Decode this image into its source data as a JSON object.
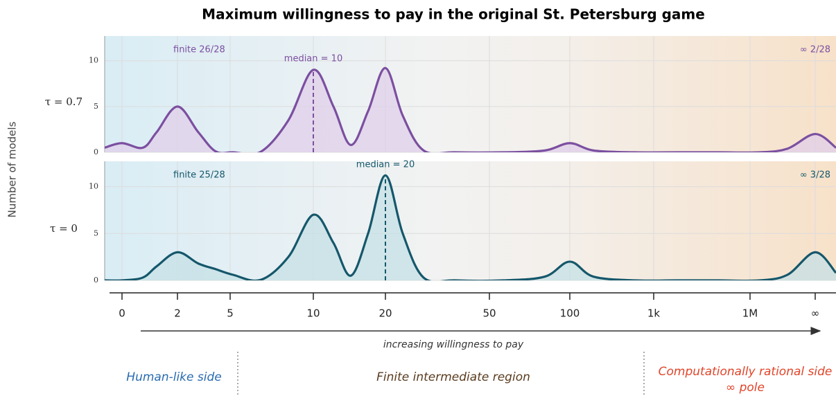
{
  "chart_data": [
    {
      "type": "line",
      "title": "Maximum willingness to pay in the original St. Petersburg game",
      "ylabel": "Number of models",
      "xlabel": "increasing willingness to pay",
      "xlim": [
        -2.5,
        103
      ],
      "ylim": [
        0,
        12.7
      ],
      "yticks": [
        0,
        5,
        10
      ],
      "grid": true,
      "x": [
        -2.5,
        0,
        3,
        5,
        8,
        11,
        13.5,
        16,
        20,
        24,
        27.6,
        30.5,
        33,
        35.5,
        38,
        40.5,
        43.5,
        48,
        55,
        61,
        64.6,
        68,
        74,
        80,
        86,
        92,
        96,
        100,
        103
      ],
      "series": [
        {
          "name": "τ = 0.7",
          "color": "#7b4fa0",
          "fill": "#e0cfea",
          "values": [
            0.5,
            1.0,
            0.5,
            2.2,
            5.0,
            2.2,
            0.1,
            0,
            0.05,
            3.5,
            9.0,
            5.0,
            0.8,
            4.5,
            9.2,
            4.0,
            0.2,
            0,
            0,
            0.2,
            1.0,
            0.2,
            0,
            0,
            0,
            0,
            0.4,
            2.0,
            0.5
          ]
        }
      ],
      "annotations": {
        "finite": "finite 26/28",
        "infinite": "∞ 2/28"
      },
      "median": {
        "label": "median = 10",
        "x": 27.6
      }
    },
    {
      "type": "line",
      "xlim": [
        -2.5,
        103
      ],
      "ylim": [
        0,
        12.7
      ],
      "yticks": [
        0,
        5,
        10
      ],
      "grid": true,
      "xticks": [
        {
          "value": 0,
          "label": "0"
        },
        {
          "value": 8,
          "label": "2"
        },
        {
          "value": 15.6,
          "label": "5"
        },
        {
          "value": 27.6,
          "label": "10"
        },
        {
          "value": 38,
          "label": "20"
        },
        {
          "value": 53,
          "label": "50"
        },
        {
          "value": 64.6,
          "label": "100"
        },
        {
          "value": 76.7,
          "label": "1k"
        },
        {
          "value": 90.6,
          "label": "1M"
        },
        {
          "value": 100,
          "label": "∞"
        }
      ],
      "x": [
        -2.5,
        0,
        3,
        5,
        8,
        11,
        13.5,
        16,
        20,
        24,
        27.6,
        30.5,
        33,
        35.5,
        38,
        40.5,
        43.5,
        48,
        55,
        61,
        64.6,
        68,
        74,
        80,
        86,
        92,
        96,
        100,
        103
      ],
      "series": [
        {
          "name": "τ = 0",
          "color": "#15576b",
          "fill": "#c6e0e6",
          "values": [
            0,
            0,
            0.3,
            1.5,
            3.0,
            1.8,
            1.2,
            0.6,
            0.05,
            2.5,
            7.0,
            4.0,
            0.5,
            5.0,
            11.2,
            5.0,
            0.3,
            0,
            0,
            0.4,
            2.0,
            0.4,
            0,
            0,
            0,
            0,
            0.6,
            3.0,
            0.8
          ]
        }
      ],
      "annotations": {
        "finite": "finite 25/28",
        "infinite": "∞ 3/28"
      },
      "median": {
        "label": "median = 20",
        "x": 38
      }
    }
  ],
  "regions": {
    "left": "Human-like side",
    "middle": "Finite intermediate region",
    "right": "Computationally rational side",
    "right_sub": "∞ pole"
  }
}
